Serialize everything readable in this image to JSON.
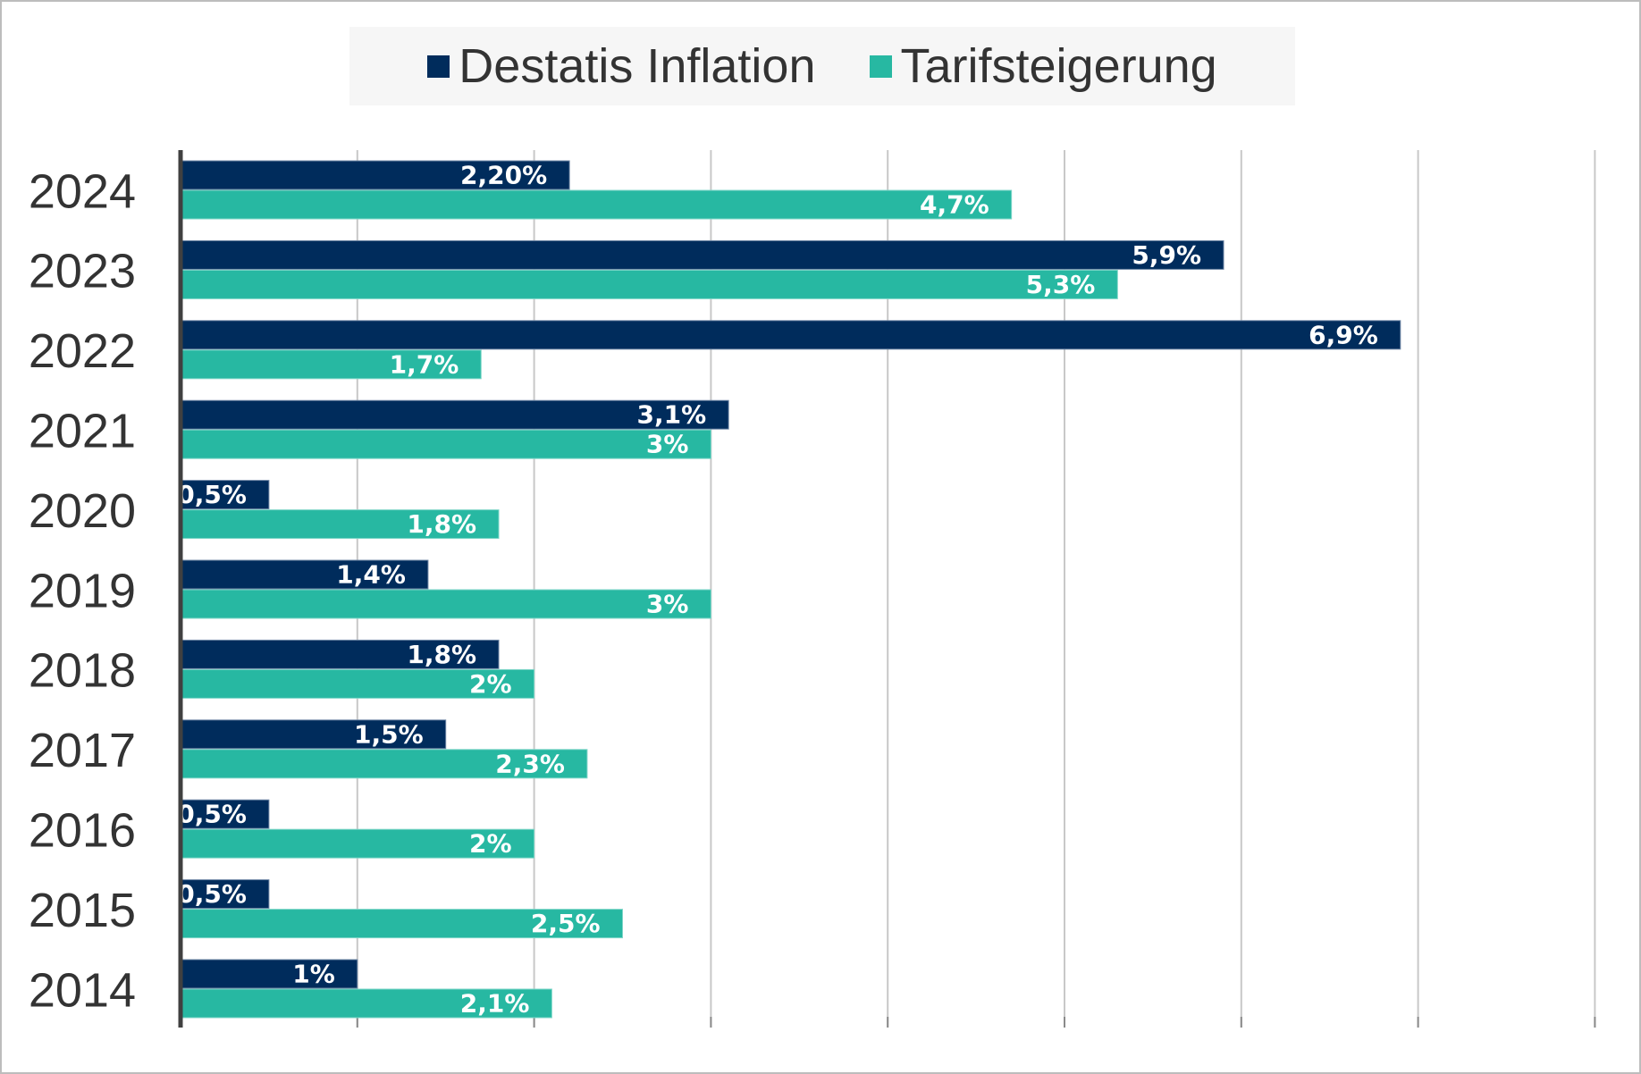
{
  "chart_data": {
    "type": "bar",
    "orientation": "horizontal",
    "title": "",
    "xlabel": "",
    "ylabel": "",
    "xlim": [
      0,
      8
    ],
    "grid": true,
    "legend_position": "top-center",
    "categories": [
      "2024",
      "2023",
      "2022",
      "2021",
      "2020",
      "2019",
      "2018",
      "2017",
      "2016",
      "2015",
      "2014"
    ],
    "series": [
      {
        "name": "Destatis Inflation",
        "color": "#002c5c",
        "values": [
          2.2,
          5.9,
          6.9,
          3.1,
          0.5,
          1.4,
          1.8,
          1.5,
          0.5,
          0.5,
          1.0
        ],
        "labels": [
          "2,20%",
          "5,9%",
          "6,9%",
          "3,1%",
          "0,5%",
          "1,4%",
          "1,8%",
          "1,5%",
          "0,5%",
          "0,5%",
          "1%"
        ]
      },
      {
        "name": "Tarifsteigerung",
        "color": "#27b8a2",
        "values": [
          4.7,
          5.3,
          1.7,
          3.0,
          1.8,
          3.0,
          2.0,
          2.3,
          2.0,
          2.5,
          2.1
        ],
        "labels": [
          "4,7%",
          "5,3%",
          "1,7%",
          "3%",
          "1,8%",
          "3%",
          "2%",
          "2,3%",
          "2%",
          "2,5%",
          "2,1%"
        ]
      }
    ]
  }
}
